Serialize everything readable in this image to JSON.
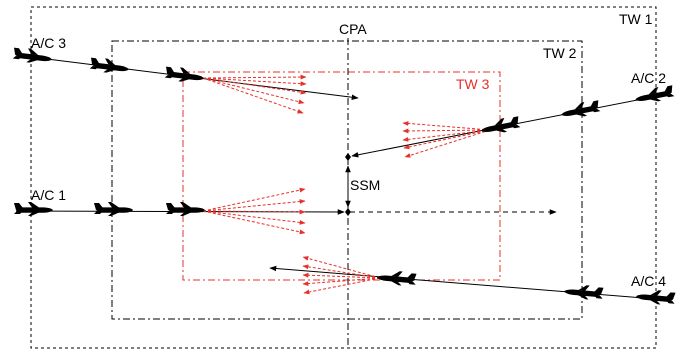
{
  "labels": {
    "tw1": "TW 1",
    "tw2": "TW 2",
    "tw3": "TW 3",
    "cpa": "CPA",
    "ssm": "SSM",
    "ac1": "A/C 1",
    "ac2": "A/C 2",
    "ac3": "A/C 3",
    "ac4": "A/C 4"
  },
  "colors": {
    "line": "#000000",
    "tw3": "#e8302a",
    "arrows_dashed": "#e8302a"
  },
  "icons": {
    "aircraft": "aircraft-silhouette-icon"
  }
}
